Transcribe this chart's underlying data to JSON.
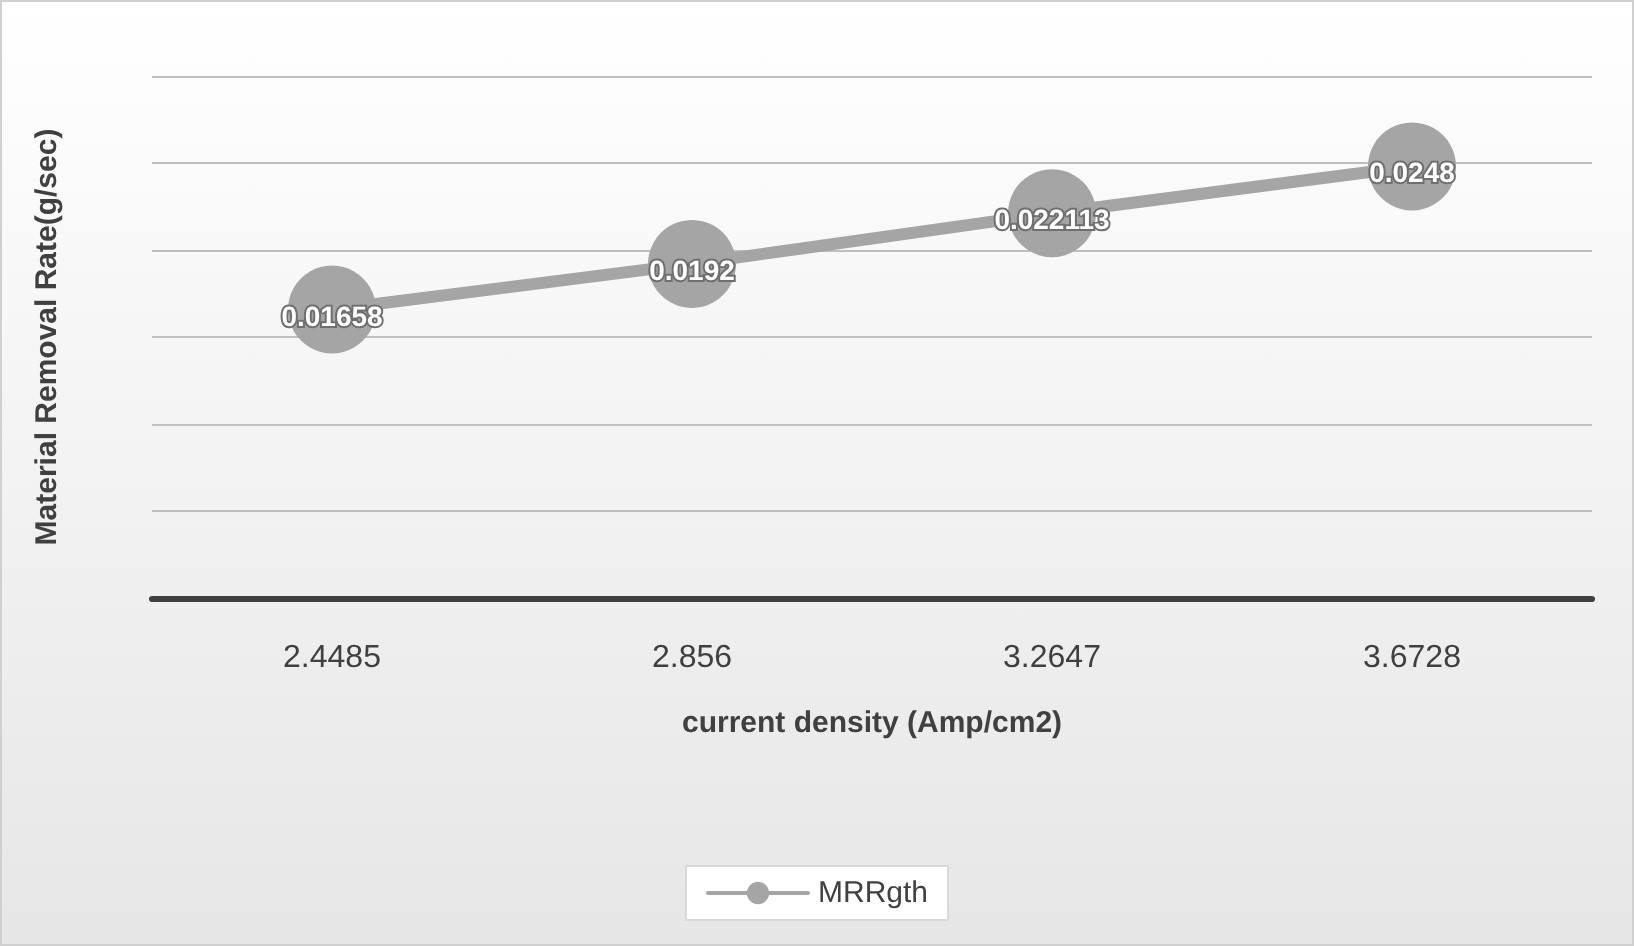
{
  "chart_data": {
    "type": "line",
    "xlabel": "current density (Amp/cm2)",
    "ylabel": "Material Removal Rate(g/sec)",
    "categories": [
      "2.4485",
      "2.856",
      "3.2647",
      "3.6728"
    ],
    "series": [
      {
        "name": "MRRgth",
        "color": "#a5a5a5",
        "values": [
          0.01658,
          0.0192,
          0.022113,
          0.0248
        ]
      }
    ],
    "ylim": [
      0,
      0.03
    ],
    "yticks": [
      {
        "value": 0,
        "label": null
      },
      {
        "value": 0.005,
        "label": null
      },
      {
        "value": 0.01,
        "label": null
      },
      {
        "value": 0.015,
        "label": null
      },
      {
        "value": 0.02,
        "label": null
      },
      {
        "value": 0.025,
        "label": null
      },
      {
        "value": 0.03,
        "label": null
      }
    ],
    "data_labels": true,
    "grid": "y",
    "legend": "bottom",
    "marker": "circle",
    "tick_labels": "x"
  }
}
